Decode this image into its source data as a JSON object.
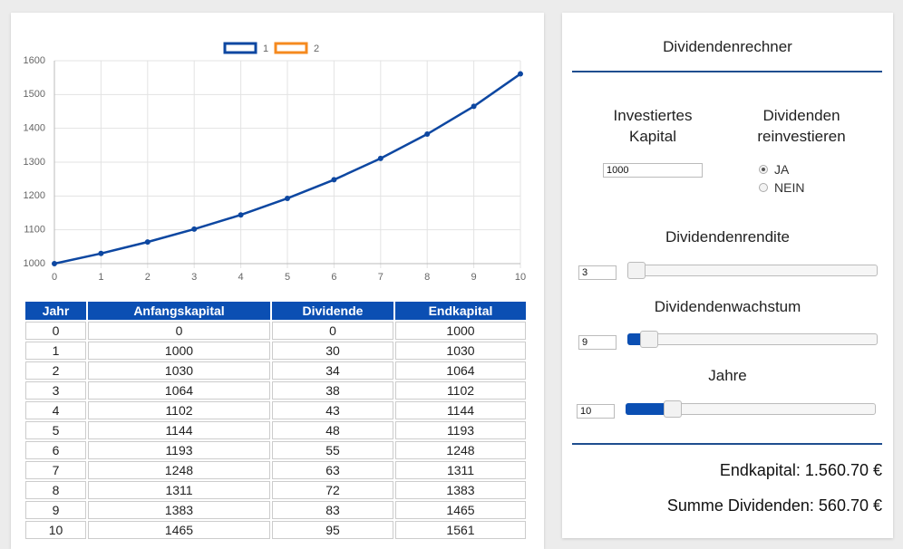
{
  "chart_data": {
    "type": "line",
    "x": [
      0,
      1,
      2,
      3,
      4,
      5,
      6,
      7,
      8,
      9,
      10
    ],
    "series": [
      {
        "name": "1",
        "color": "#0d47a1",
        "values": [
          1000,
          1030,
          1064,
          1102,
          1144,
          1193,
          1248,
          1311,
          1383,
          1465,
          1561
        ]
      },
      {
        "name": "2",
        "color": "#f58a1f",
        "values": [
          null,
          null,
          null,
          null,
          null,
          null,
          null,
          null,
          null,
          null,
          null
        ]
      }
    ],
    "xlim": [
      0,
      10
    ],
    "xticks": [
      0,
      1,
      2,
      3,
      4,
      5,
      6,
      7,
      8,
      9,
      10
    ],
    "ylim": [
      1000,
      1600
    ],
    "yticks": [
      1000,
      1100,
      1200,
      1300,
      1400,
      1500,
      1600
    ],
    "grid": true,
    "legend": "top"
  },
  "table": {
    "headers": [
      "Jahr",
      "Anfangskapital",
      "Dividende",
      "Endkapital"
    ],
    "rows": [
      [
        0,
        0,
        0,
        1000
      ],
      [
        1,
        1000,
        30,
        1030
      ],
      [
        2,
        1030,
        34,
        1064
      ],
      [
        3,
        1064,
        38,
        1102
      ],
      [
        4,
        1102,
        43,
        1144
      ],
      [
        5,
        1144,
        48,
        1193
      ],
      [
        6,
        1193,
        55,
        1248
      ],
      [
        7,
        1248,
        63,
        1311
      ],
      [
        8,
        1311,
        72,
        1383
      ],
      [
        9,
        1383,
        83,
        1465
      ],
      [
        10,
        1465,
        95,
        1561
      ]
    ]
  },
  "calculator": {
    "title": "Dividendenrechner",
    "capital_label": "Investiertes Kapital",
    "capital": 1000,
    "reinvest_label": "Dividenden reinvestieren",
    "reinvest_options": [
      "JA",
      "NEIN"
    ],
    "reinvest_selected": "JA",
    "yield_label": "Dividendenrendite",
    "yield": 3,
    "growth_label": "Dividendenwachstum",
    "growth": 9,
    "years_label": "Jahre",
    "years": 10,
    "result_end": "Endkapital: 1.560.70 €",
    "result_dividends": "Summe Dividenden: 560.70 €"
  }
}
